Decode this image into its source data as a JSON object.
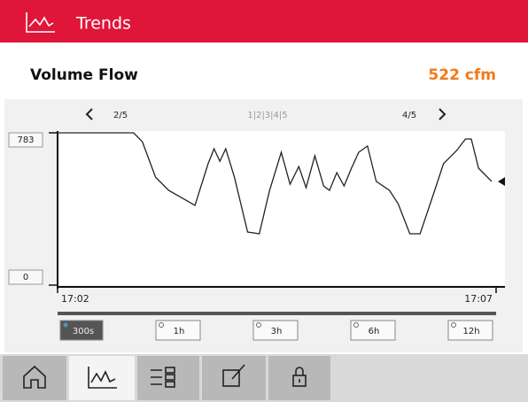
{
  "header": {
    "title": "Trends"
  },
  "measurement": {
    "name": "Volume Flow",
    "value": "522 cfm"
  },
  "pager": {
    "previous": "2/5",
    "pages": "1|2|3|4|5",
    "next": "4/5"
  },
  "chart_data": {
    "type": "line",
    "color": "#222222",
    "x": [
      0,
      52,
      58,
      67,
      76,
      94,
      103,
      107,
      111,
      115,
      121,
      130,
      138,
      145,
      153,
      159,
      165,
      170,
      176,
      182,
      186,
      191,
      196,
      201,
      206,
      212,
      218,
      227,
      233,
      241,
      248,
      258,
      264,
      273,
      279,
      283,
      288,
      297
    ],
    "values": [
      783,
      783,
      737,
      555,
      487,
      410,
      624,
      701,
      637,
      701,
      555,
      273,
      264,
      487,
      683,
      519,
      610,
      501,
      665,
      510,
      487,
      578,
      510,
      601,
      683,
      715,
      533,
      487,
      419,
      264,
      264,
      487,
      624,
      692,
      751,
      751,
      601,
      533
    ],
    "xlim": [
      0,
      300
    ],
    "xticks": [
      {
        "value": 0,
        "label": "17:02"
      },
      {
        "value": 300,
        "label": "17:07"
      }
    ],
    "ylim": [
      0,
      783
    ],
    "yticks": [
      0,
      783
    ]
  },
  "time_ranges": [
    "300s",
    "1h",
    "3h",
    "6h",
    "12h"
  ]
}
